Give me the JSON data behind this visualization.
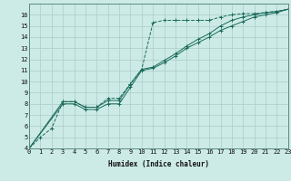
{
  "xlabel": "Humidex (Indice chaleur)",
  "bg_color": "#cceae6",
  "grid_color": "#aaccca",
  "line_color": "#1a6b5a",
  "xmin": 0,
  "xmax": 23,
  "ymin": 4,
  "ymax": 17,
  "yticks": [
    4,
    5,
    6,
    7,
    8,
    9,
    10,
    11,
    12,
    13,
    14,
    15,
    16
  ],
  "line1": [
    [
      0,
      4.0
    ],
    [
      1,
      5.0
    ],
    [
      2,
      5.8
    ],
    [
      3,
      8.2
    ],
    [
      4,
      8.2
    ],
    [
      5,
      7.7
    ],
    [
      6,
      7.7
    ],
    [
      7,
      8.5
    ],
    [
      8,
      8.5
    ],
    [
      9,
      9.8
    ],
    [
      10,
      11.1
    ],
    [
      11,
      15.3
    ],
    [
      12,
      15.5
    ],
    [
      13,
      15.5
    ],
    [
      14,
      15.5
    ],
    [
      15,
      15.5
    ],
    [
      16,
      15.5
    ],
    [
      17,
      15.8
    ],
    [
      18,
      16.0
    ],
    [
      19,
      16.1
    ],
    [
      20,
      16.1
    ],
    [
      21,
      16.2
    ],
    [
      22,
      16.3
    ],
    [
      23,
      16.5
    ]
  ],
  "line2": [
    [
      0,
      4.0
    ],
    [
      3,
      8.2
    ],
    [
      4,
      8.2
    ],
    [
      5,
      7.7
    ],
    [
      6,
      7.7
    ],
    [
      7,
      8.3
    ],
    [
      8,
      8.3
    ],
    [
      9,
      9.8
    ],
    [
      10,
      11.1
    ],
    [
      11,
      11.3
    ],
    [
      12,
      11.9
    ],
    [
      13,
      12.5
    ],
    [
      14,
      13.2
    ],
    [
      15,
      13.8
    ],
    [
      16,
      14.3
    ],
    [
      17,
      15.0
    ],
    [
      18,
      15.5
    ],
    [
      19,
      15.8
    ],
    [
      20,
      16.0
    ],
    [
      21,
      16.2
    ],
    [
      22,
      16.3
    ],
    [
      23,
      16.5
    ]
  ],
  "line3": [
    [
      0,
      4.0
    ],
    [
      3,
      8.0
    ],
    [
      4,
      8.0
    ],
    [
      5,
      7.5
    ],
    [
      6,
      7.5
    ],
    [
      7,
      8.0
    ],
    [
      8,
      8.0
    ],
    [
      9,
      9.5
    ],
    [
      10,
      11.0
    ],
    [
      11,
      11.2
    ],
    [
      12,
      11.7
    ],
    [
      13,
      12.3
    ],
    [
      14,
      13.0
    ],
    [
      15,
      13.5
    ],
    [
      16,
      14.0
    ],
    [
      17,
      14.6
    ],
    [
      18,
      15.0
    ],
    [
      19,
      15.4
    ],
    [
      20,
      15.8
    ],
    [
      21,
      16.0
    ],
    [
      22,
      16.2
    ],
    [
      23,
      16.5
    ]
  ]
}
